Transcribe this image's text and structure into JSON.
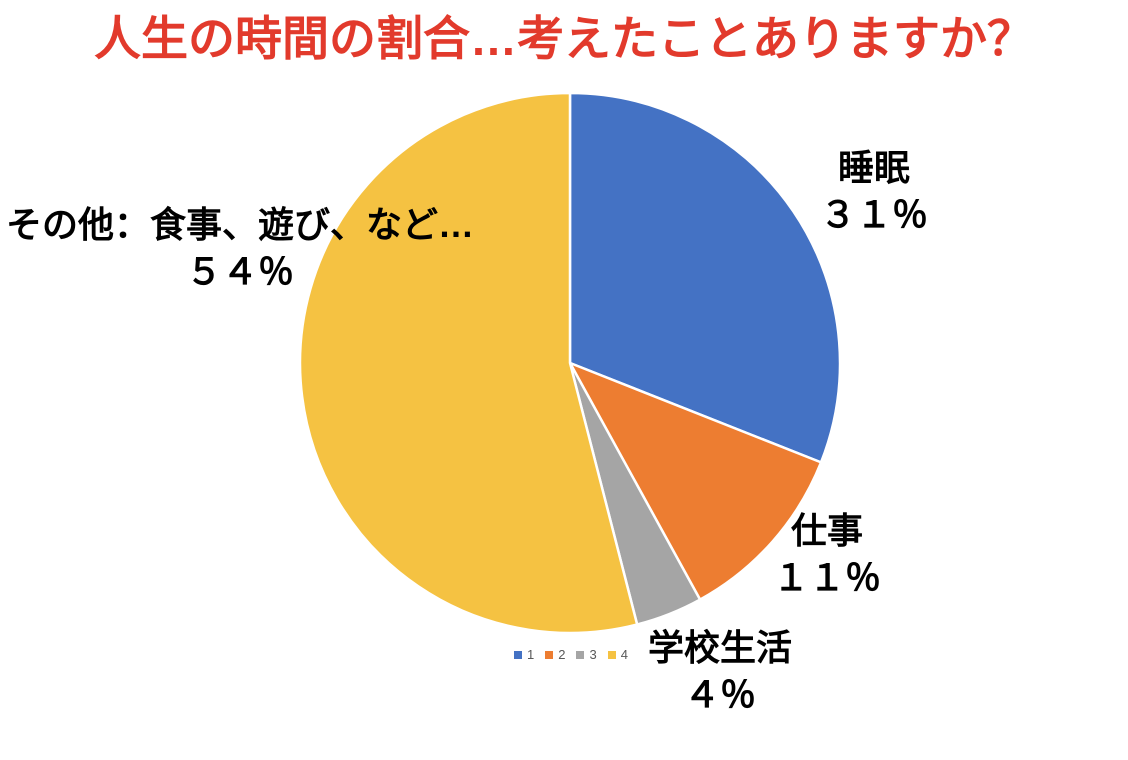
{
  "title": {
    "text": "人生の時間の割合…考えたことありますか？",
    "color": "#E23A2C"
  },
  "chart_data": {
    "type": "pie",
    "title": "人生の時間の割合…考えたことありますか？",
    "categories": [
      "睡眠",
      "仕事",
      "学校生活",
      "その他：食事、遊び、など…"
    ],
    "values": [
      31,
      11,
      4,
      54
    ],
    "unit": "%",
    "colors": [
      "#4472C4",
      "#ED7D31",
      "#A5A5A5",
      "#F5C242"
    ],
    "start_angle_deg": 0,
    "direction": "clockwise",
    "slice_border_color": "#FFFFFF",
    "legend_position": "bottom",
    "data_labels": [
      {
        "name": "睡眠",
        "value_text": "３１％"
      },
      {
        "name": "仕事",
        "value_text": "１１％"
      },
      {
        "name": "学校生活",
        "value_text": "４％"
      },
      {
        "name": "その他：食事、遊び、など…",
        "value_text": "５４％"
      }
    ]
  },
  "labels": {
    "sleep": {
      "line1": "睡眠",
      "line2": "３１％"
    },
    "work": {
      "line1": "仕事",
      "line2": "１１％"
    },
    "school": {
      "line1": "学校生活",
      "line2": "４％"
    },
    "other": {
      "line1": "その他：食事、遊び、など…",
      "line2": "５４％"
    }
  },
  "legend": {
    "text_color": "#595959",
    "items": [
      {
        "label": "1",
        "color": "#4472C4"
      },
      {
        "label": "2",
        "color": "#ED7D31"
      },
      {
        "label": "3",
        "color": "#A5A5A5"
      },
      {
        "label": "4",
        "color": "#F5C242"
      }
    ]
  }
}
